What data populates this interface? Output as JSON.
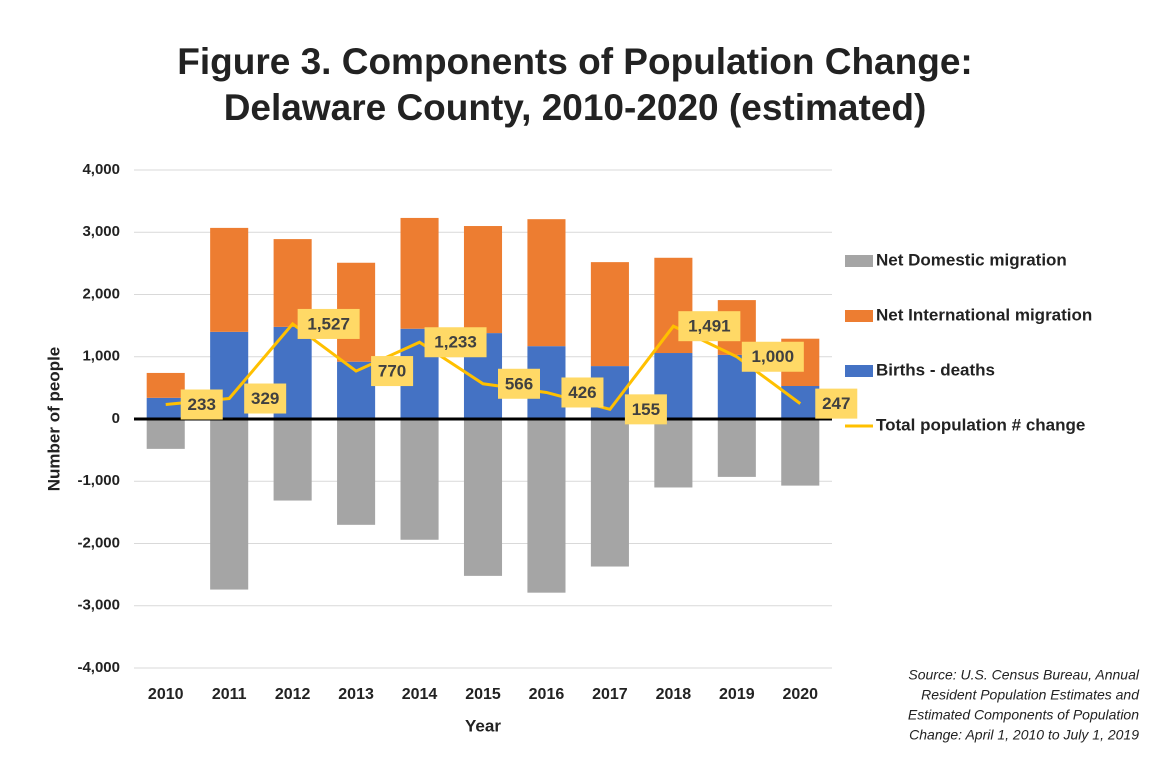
{
  "chart_data": {
    "type": "bar",
    "title": [
      "Figure 3. Components of Population Change:",
      "Delaware County, 2010-2020 (estimated)"
    ],
    "x_label": "Year",
    "y_label": "Number of people",
    "categories": [
      "2010",
      "2011",
      "2012",
      "2013",
      "2014",
      "2015",
      "2016",
      "2017",
      "2018",
      "2019",
      "2020"
    ],
    "series": [
      {
        "name": "Net Domestic migration",
        "type": "bar",
        "color": "#a5a5a5",
        "values": [
          -480,
          -2740,
          -1310,
          -1700,
          -1940,
          -2520,
          -2790,
          -2370,
          -1100,
          -930,
          -1070
        ]
      },
      {
        "name": "Net International migration",
        "type": "bar",
        "color": "#ed7d31",
        "values": [
          400,
          1670,
          1410,
          1590,
          1780,
          1720,
          2040,
          1670,
          1530,
          880,
          760
        ]
      },
      {
        "name": "Births - deaths",
        "type": "bar",
        "color": "#4472c4",
        "values": [
          340,
          1400,
          1480,
          920,
          1450,
          1380,
          1170,
          850,
          1060,
          1030,
          530
        ]
      },
      {
        "name": "Total population # change",
        "type": "line",
        "color": "#ffc000",
        "values": [
          233,
          329,
          1527,
          770,
          1233,
          566,
          426,
          155,
          1491,
          1000,
          247
        ],
        "value_labels": [
          "233",
          "329",
          "1,527",
          "770",
          "1,233",
          "566",
          "426",
          "155",
          "1,491",
          "1,000",
          "247"
        ]
      }
    ],
    "ylim": [
      -4000,
      4000
    ],
    "yticks": [
      {
        "value": -4000,
        "label": "-4,000"
      },
      {
        "value": -3000,
        "label": "-3,000"
      },
      {
        "value": -2000,
        "label": "-2,000"
      },
      {
        "value": -1000,
        "label": "-1,000"
      },
      0,
      {
        "value": 1000,
        "label": "1,000"
      },
      {
        "value": 2000,
        "label": "2,000"
      },
      {
        "value": 3000,
        "label": "3,000"
      },
      {
        "value": 4000,
        "label": "4,000"
      }
    ],
    "grid": true,
    "legend": "right",
    "source": [
      "Source: U.S. Census Bureau, Annual",
      "Resident Population Estimates and",
      "Estimated Components of Population",
      "Change: April 1, 2010 to July 1, 2019"
    ]
  }
}
